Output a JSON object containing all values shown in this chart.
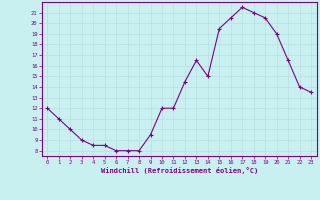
{
  "x": [
    0,
    1,
    2,
    3,
    4,
    5,
    6,
    7,
    8,
    9,
    10,
    11,
    12,
    13,
    14,
    15,
    16,
    17,
    18,
    19,
    20,
    21,
    22,
    23
  ],
  "y": [
    12,
    11,
    10,
    9,
    8.5,
    8.5,
    8,
    8,
    8,
    9.5,
    12,
    12,
    14.5,
    16.5,
    15,
    19.5,
    20.5,
    21.5,
    21,
    20.5,
    19,
    16.5,
    14,
    13.5
  ],
  "line_color": "#800080",
  "marker": "+",
  "marker_color": "#800080",
  "bg_color": "#c8f0f0",
  "grid_color": "#b8e0e0",
  "xlabel": "Windchill (Refroidissement éolien,°C)",
  "xlabel_color": "#800080",
  "tick_color": "#800080",
  "ylim": [
    7.5,
    22
  ],
  "xlim": [
    -0.5,
    23.5
  ],
  "yticks": [
    8,
    9,
    10,
    11,
    12,
    13,
    14,
    15,
    16,
    17,
    18,
    19,
    20,
    21
  ],
  "xticks": [
    0,
    1,
    2,
    3,
    4,
    5,
    6,
    7,
    8,
    9,
    10,
    11,
    12,
    13,
    14,
    15,
    16,
    17,
    18,
    19,
    20,
    21,
    22,
    23
  ],
  "spine_color": "#800080"
}
